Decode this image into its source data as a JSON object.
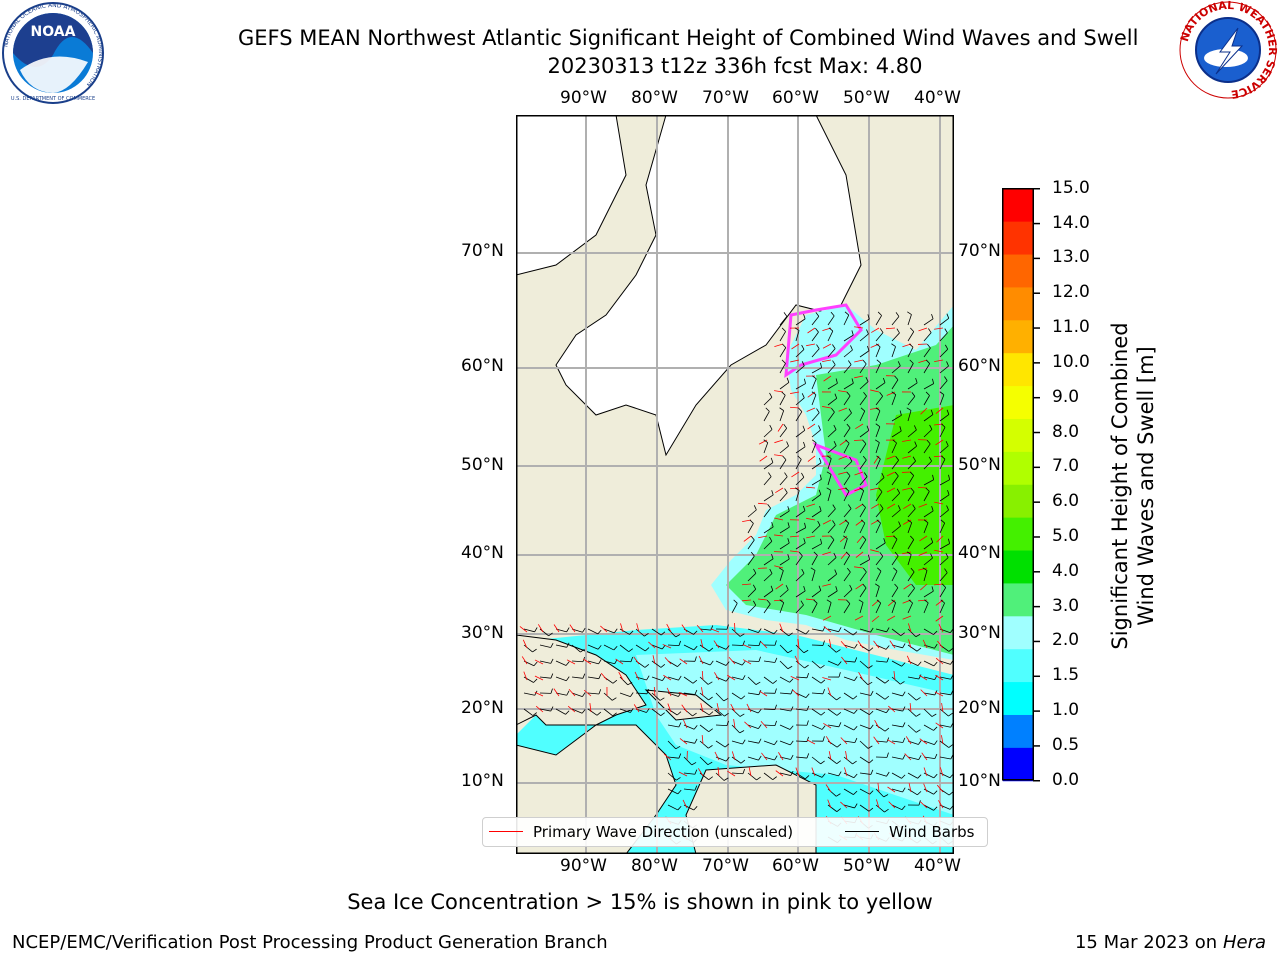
{
  "title": {
    "line1": "GEFS MEAN Northwest Atlantic Significant Height of Combined Wind Waves and Swell",
    "line2": "20230313 t12z 336h fcst   Max: 4.80"
  },
  "logos": {
    "noara_text": "NOAA",
    "noaa_ring": "NATIONAL OCEANIC AND ATMOSPHERIC ADMINISTRATION",
    "noaa_ring_bottom": "U.S. DEPARTMENT OF COMMERCE",
    "nws_ring": "NATIONAL WEATHER SERVICE"
  },
  "axes": {
    "lon_ticks": [
      "90°W",
      "80°W",
      "70°W",
      "60°W",
      "50°W",
      "40°W"
    ],
    "lat_ticks": [
      "70°N",
      "60°N",
      "50°N",
      "40°N",
      "30°N",
      "20°N",
      "10°N"
    ]
  },
  "colorbar": {
    "label_line1": "Significant Height of Combined",
    "label_line2": "Wind Waves and Swell [m]",
    "ticks": [
      "15.0",
      "14.0",
      "13.0",
      "12.0",
      "11.0",
      "10.0",
      "9.0",
      "8.0",
      "7.0",
      "6.0",
      "5.0",
      "4.0",
      "3.0",
      "2.0",
      "1.5",
      "1.0",
      "0.5",
      "0.0"
    ],
    "colors": [
      "#ff0000",
      "#ff3300",
      "#ff6600",
      "#ff8c00",
      "#ffb000",
      "#ffe600",
      "#f5ff00",
      "#d4ff00",
      "#b0ff00",
      "#88f000",
      "#44f000",
      "#00e000",
      "#50f07a",
      "#a0ffff",
      "#50ffff",
      "#00ffff",
      "#0080ff",
      "#0000ff"
    ]
  },
  "map_colors": {
    "land": "#efedda",
    "ice_land": "#ffffff",
    "wave_low": "#50ffff",
    "wave_mid": "#a0ffff",
    "wave_high": "#50f07a",
    "wave_peak": "#44f000",
    "sea_ice": "#ff40ff"
  },
  "legend": {
    "wave_dir": "Primary Wave Direction (unscaled)",
    "wind_barbs": "Wind Barbs",
    "wave_dir_color": "#ff0000",
    "wind_barbs_color": "#000000"
  },
  "note": "Sea Ice Concentration > 15% is shown in pink to yellow",
  "footer": {
    "left": "NCEP/EMC/Verification Post Processing Product Generation Branch",
    "date": "15 Mar 2023 on",
    "machine": "Hera"
  }
}
